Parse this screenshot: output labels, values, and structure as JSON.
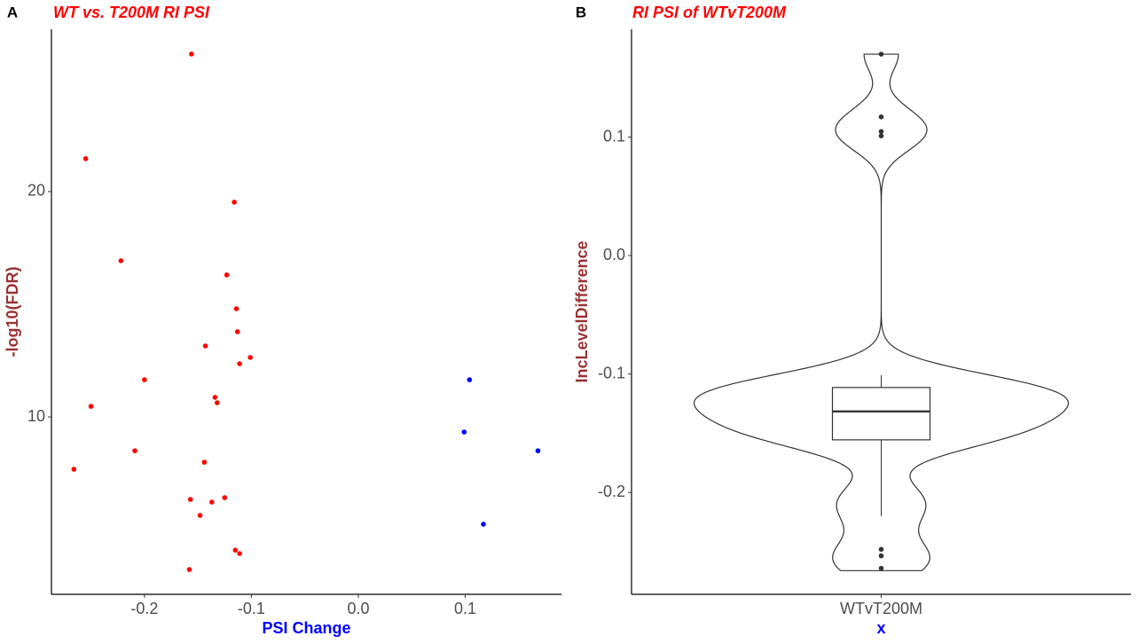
{
  "chart_data": [
    {
      "type": "scatter",
      "panel_label": "A",
      "title": "WT vs. T200M RI PSI",
      "x_label": "PSI Change",
      "y_label": "-log10(FDR)",
      "xlim": [
        -0.287,
        0.19
      ],
      "ylim": [
        2.13,
        27.2
      ],
      "xticks": [
        -0.2,
        -0.1,
        {
          "value": 0,
          "label": "0.0"
        },
        0.1
      ],
      "yticks": [
        10,
        20
      ],
      "series": [
        {
          "color": "#ff0000",
          "x": [
            -0.156,
            -0.255,
            -0.116,
            -0.222,
            -0.123,
            -0.114,
            -0.113,
            -0.143,
            -0.101,
            -0.111,
            -0.2,
            -0.134,
            -0.132,
            -0.25,
            -0.209,
            -0.144,
            -0.266,
            -0.157,
            -0.125,
            -0.137,
            -0.148,
            -0.115,
            -0.111,
            -0.158
          ],
          "values": [
            26.1,
            21.46,
            19.53,
            16.93,
            16.3,
            14.8,
            13.78,
            13.15,
            12.64,
            12.36,
            11.65,
            10.87,
            10.63,
            10.47,
            8.5,
            7.99,
            7.68,
            6.34,
            6.42,
            6.22,
            5.63,
            4.09,
            3.94,
            3.23
          ]
        },
        {
          "color": "#0000ff",
          "x": [
            0.104,
            0.099,
            0.168,
            0.117
          ],
          "values": [
            11.65,
            9.33,
            8.5,
            5.24
          ]
        }
      ]
    },
    {
      "type": "violin",
      "panel_label": "B",
      "title": "RI PSI of WTvT200M",
      "x_label": "x",
      "y_label": "IncLevelDifference",
      "categories": [
        "WTvT200M"
      ],
      "ylim": [
        -0.286,
        0.191
      ],
      "yticks": [
        -0.2,
        -0.1,
        {
          "value": 0,
          "label": "0.0"
        },
        0.1
      ],
      "values": [
        -0.156,
        -0.255,
        -0.116,
        -0.222,
        -0.123,
        -0.114,
        -0.113,
        -0.143,
        -0.101,
        -0.111,
        -0.2,
        -0.134,
        -0.132,
        -0.25,
        -0.209,
        -0.144,
        -0.266,
        -0.157,
        -0.125,
        -0.137,
        -0.148,
        -0.115,
        -0.111,
        -0.158,
        0.104,
        0.099,
        0.17,
        0.117
      ],
      "box": {
        "whisker_low": -0.22,
        "q1": -0.1556,
        "median": -0.1316,
        "q3": -0.1114,
        "whisker_high": -0.101
      },
      "outliers": [
        0.17,
        0.117,
        0.1047,
        0.101,
        -0.248,
        -0.2535,
        -0.264
      ]
    }
  ]
}
